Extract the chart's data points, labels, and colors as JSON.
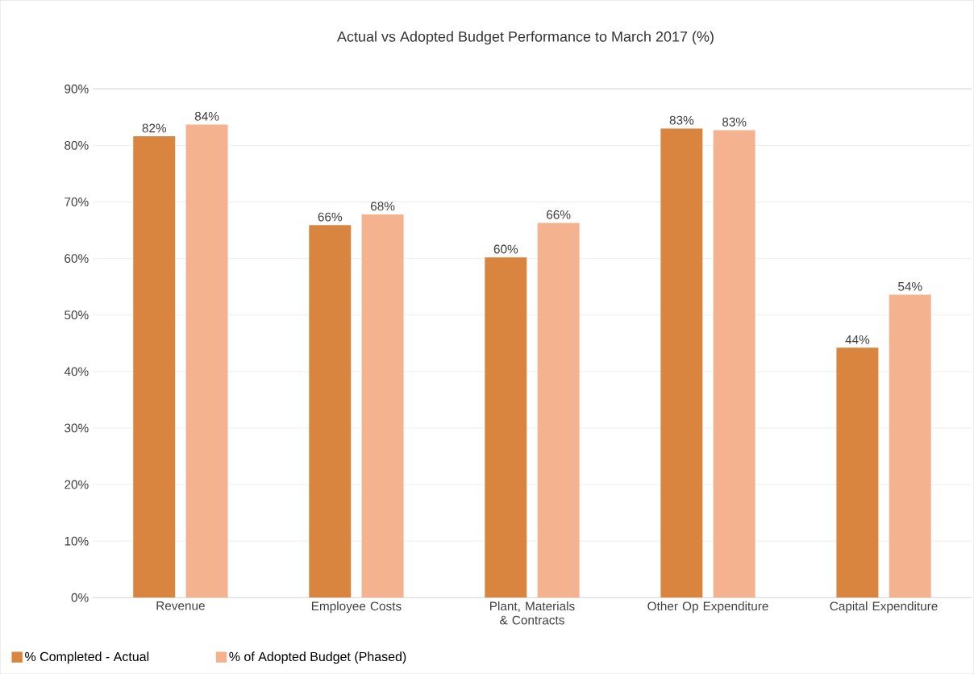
{
  "chart_data": {
    "type": "bar",
    "title": "Actual vs Adopted Budget Performance to March 2017 (%)",
    "categories": [
      "Revenue",
      "Employee Costs",
      "Plant, Materials & Contracts",
      "Other Op Expenditure",
      "Capital Expenditure"
    ],
    "series": [
      {
        "name": "% Completed - Actual",
        "color": "#d9843f",
        "values": [
          81.6,
          65.9,
          60.2,
          83.0,
          44.2
        ],
        "value_labels": [
          "82%",
          "66%",
          "60%",
          "83%",
          "44%"
        ]
      },
      {
        "name": "% of Adopted Budget (Phased)",
        "color": "#f5b28f",
        "values": [
          83.7,
          67.8,
          66.3,
          82.7,
          53.6
        ],
        "value_labels": [
          "84%",
          "68%",
          "66%",
          "83%",
          "54%"
        ]
      }
    ],
    "ylim": [
      0,
      90
    ],
    "yticks": [
      {
        "value": 0,
        "label": "0%"
      },
      {
        "value": 10,
        "label": "10%"
      },
      {
        "value": 20,
        "label": "20%"
      },
      {
        "value": 30,
        "label": "30%"
      },
      {
        "value": 40,
        "label": "40%"
      },
      {
        "value": 50,
        "label": "50%"
      },
      {
        "value": 60,
        "label": "60%"
      },
      {
        "value": 70,
        "label": "70%"
      },
      {
        "value": 80,
        "label": "80%"
      },
      {
        "value": 90,
        "label": "90%"
      }
    ],
    "grid": "y",
    "legend": "bottom left"
  }
}
